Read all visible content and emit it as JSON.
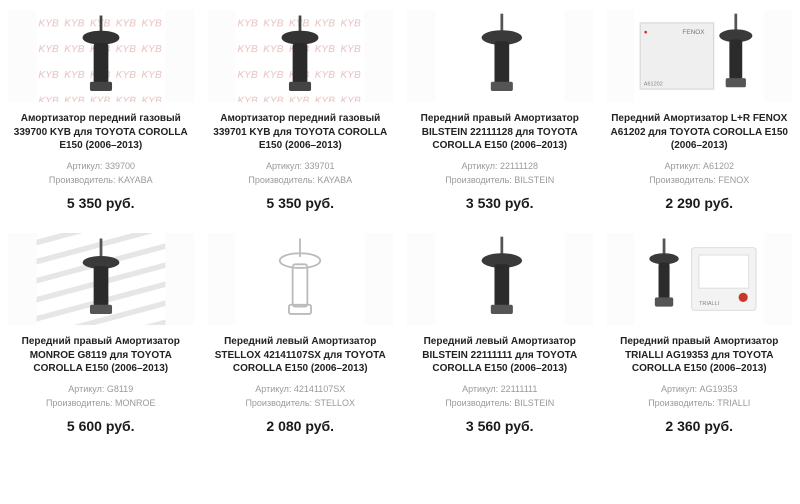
{
  "labels": {
    "sku_prefix": "Артикул: ",
    "mfr_prefix": "Производитель: ",
    "currency": " руб."
  },
  "products": [
    {
      "title": "Амортизатор передний газовый 339700 KYB для TOYOTA COROLLA E150 (2006–2013)",
      "sku": "339700",
      "manufacturer": "KAYABA",
      "price": "5 350",
      "img_style": "strut-red-bg"
    },
    {
      "title": "Амортизатор передний газовый 339701 KYB для TOYOTA COROLLA E150 (2006–2013)",
      "sku": "339701",
      "manufacturer": "KAYABA",
      "price": "5 350",
      "img_style": "strut-red-bg"
    },
    {
      "title": "Передний правый Амортизатор BILSTEIN 22111128 для TOYOTA COROLLA E150 (2006–2013)",
      "sku": "22111128",
      "manufacturer": "BILSTEIN",
      "price": "3 530",
      "img_style": "strut-plain"
    },
    {
      "title": "Передний Амортизатор L+R FENOX A61202 для TOYOTA COROLLA E150 (2006–2013)",
      "sku": "A61202",
      "manufacturer": "FENOX",
      "price": "2 290",
      "img_style": "strut-box"
    },
    {
      "title": "Передний правый Амортизатор MONROE G8119 для TOYOTA COROLLA E150 (2006–2013)",
      "sku": "G8119",
      "manufacturer": "MONROE",
      "price": "5 600",
      "img_style": "strut-pattern"
    },
    {
      "title": "Передний левый Амортизатор STELLOX 42141107SX для TOYOTA COROLLA E150 (2006–2013)",
      "sku": "42141107SX",
      "manufacturer": "STELLOX",
      "price": "2 080",
      "img_style": "strut-outline"
    },
    {
      "title": "Передний левый Амортизатор BILSTEIN 22111111 для TOYOTA COROLLA E150 (2006–2013)",
      "sku": "22111111",
      "manufacturer": "BILSTEIN",
      "price": "3 560",
      "img_style": "strut-plain"
    },
    {
      "title": "Передний правый Амортизатор TRIALLI AG19353 для TOYOTA COROLLA E150 (2006–2013)",
      "sku": "AG19353",
      "manufacturer": "TRIALLI",
      "price": "2 360",
      "img_style": "strut-package"
    }
  ],
  "colors": {
    "text_title": "#222222",
    "text_meta": "#9a9a9a",
    "text_price": "#1a1a1a",
    "bg": "#ffffff"
  }
}
